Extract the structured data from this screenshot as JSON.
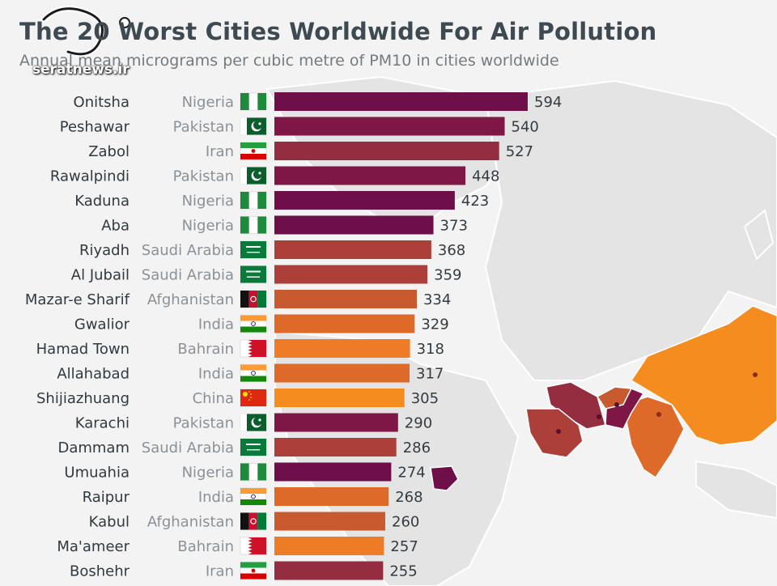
{
  "header": {
    "title": "The 20 Worst Cities Worldwide For Air Pollution",
    "subtitle": "Annual mean micrograms per cubic metre of PM10 in cities worldwide"
  },
  "watermark": {
    "text": "seratnews.ir"
  },
  "colors": {
    "Nigeria": "#6e0f4a",
    "Pakistan": "#7e1745",
    "Iran": "#942d40",
    "Saudi Arabia": "#ad3f3a",
    "Afghanistan": "#c85a30",
    "India": "#dd6a28",
    "Bahrain": "#ee7c26",
    "China": "#f58c1f"
  },
  "chart_data": {
    "type": "bar",
    "orientation": "horizontal",
    "categories": [
      "Onitsha",
      "Peshawar",
      "Zabol",
      "Rawalpindi",
      "Kaduna",
      "Aba",
      "Riyadh",
      "Al Jubail",
      "Mazar-e Sharif",
      "Gwalior",
      "Hamad Town",
      "Allahabad",
      "Shijiazhuang",
      "Karachi",
      "Dammam",
      "Umuahia",
      "Raipur",
      "Kabul",
      "Ma'ameer",
      "Boshehr"
    ],
    "countries": [
      "Nigeria",
      "Pakistan",
      "Iran",
      "Pakistan",
      "Nigeria",
      "Nigeria",
      "Saudi Arabia",
      "Saudi Arabia",
      "Afghanistan",
      "India",
      "Bahrain",
      "India",
      "China",
      "Pakistan",
      "Saudi Arabia",
      "Nigeria",
      "India",
      "Afghanistan",
      "Bahrain",
      "Iran"
    ],
    "values": [
      594,
      540,
      527,
      448,
      423,
      373,
      368,
      359,
      334,
      329,
      318,
      317,
      305,
      290,
      286,
      274,
      268,
      260,
      257,
      255
    ],
    "xlim": [
      0,
      600
    ],
    "grid": false,
    "legend": "none"
  }
}
